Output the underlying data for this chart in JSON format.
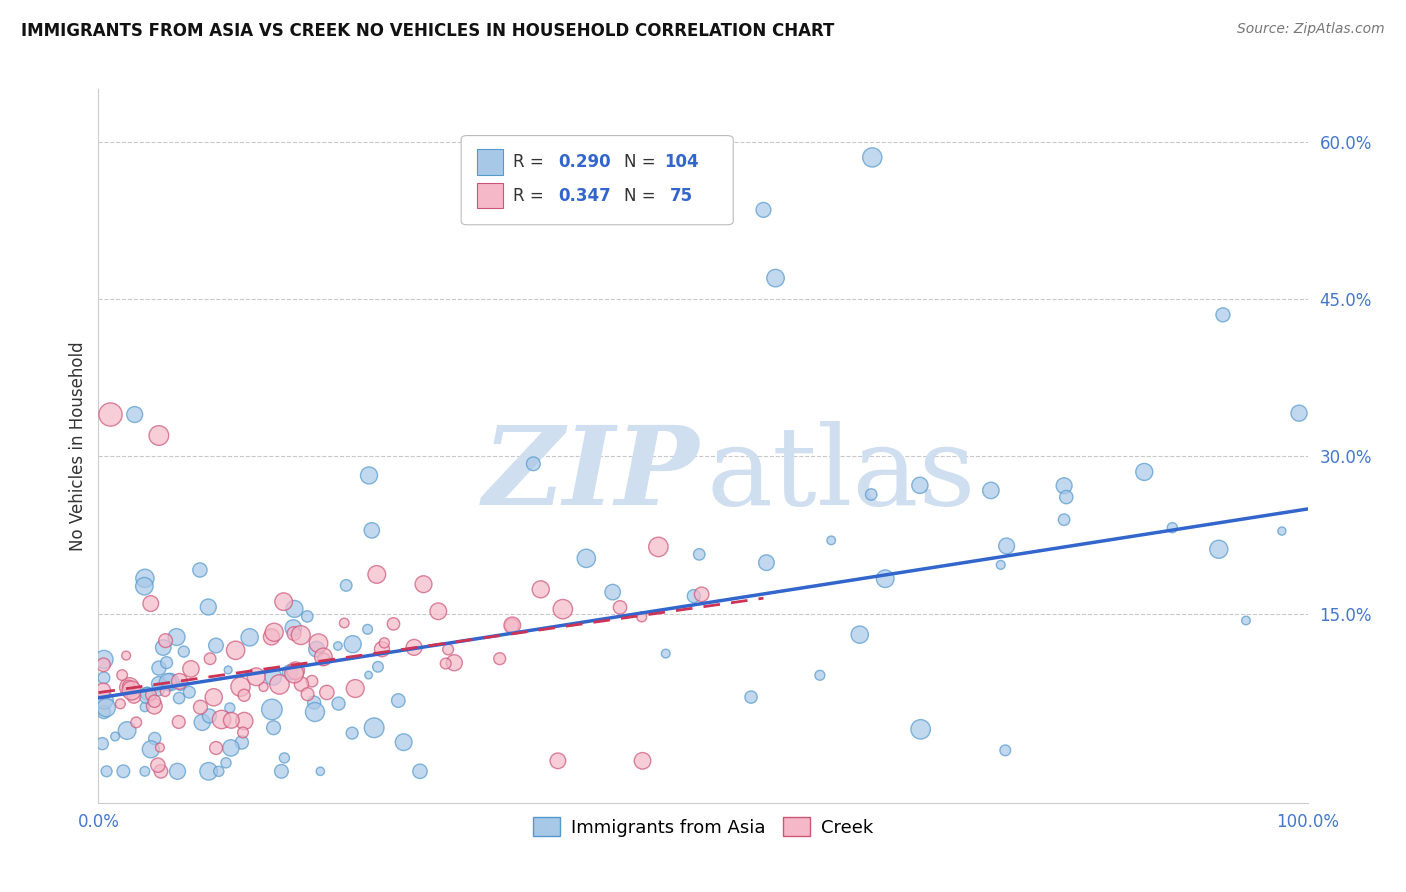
{
  "title": "IMMIGRANTS FROM ASIA VS CREEK NO VEHICLES IN HOUSEHOLD CORRELATION CHART",
  "source": "Source: ZipAtlas.com",
  "ylabel": "No Vehicles in Household",
  "legend_labels": [
    "Immigrants from Asia",
    "Creek"
  ],
  "series1_color": "#a8c8e8",
  "series1_edge": "#5599cc",
  "series2_color": "#f4b8c8",
  "series2_edge": "#cc5577",
  "line1_color": "#3366cc",
  "line2_color": "#cc3355",
  "watermark_color": "#d0dff0",
  "R1": 0.29,
  "N1": 104,
  "R2": 0.347,
  "N2": 75,
  "xmin": 0.0,
  "xmax": 1.0,
  "ymin": -0.03,
  "ymax": 0.65,
  "ytick_vals": [
    0.0,
    0.15,
    0.3,
    0.45,
    0.6
  ],
  "ytick_labels": [
    "",
    "15.0%",
    "30.0%",
    "45.0%",
    "60.0%"
  ],
  "line1_x0": 0.0,
  "line1_x1": 1.0,
  "line1_y0": 0.07,
  "line1_y1": 0.25,
  "line2_x0": 0.0,
  "line2_x1": 0.55,
  "line2_y0": 0.075,
  "line2_y1": 0.165
}
